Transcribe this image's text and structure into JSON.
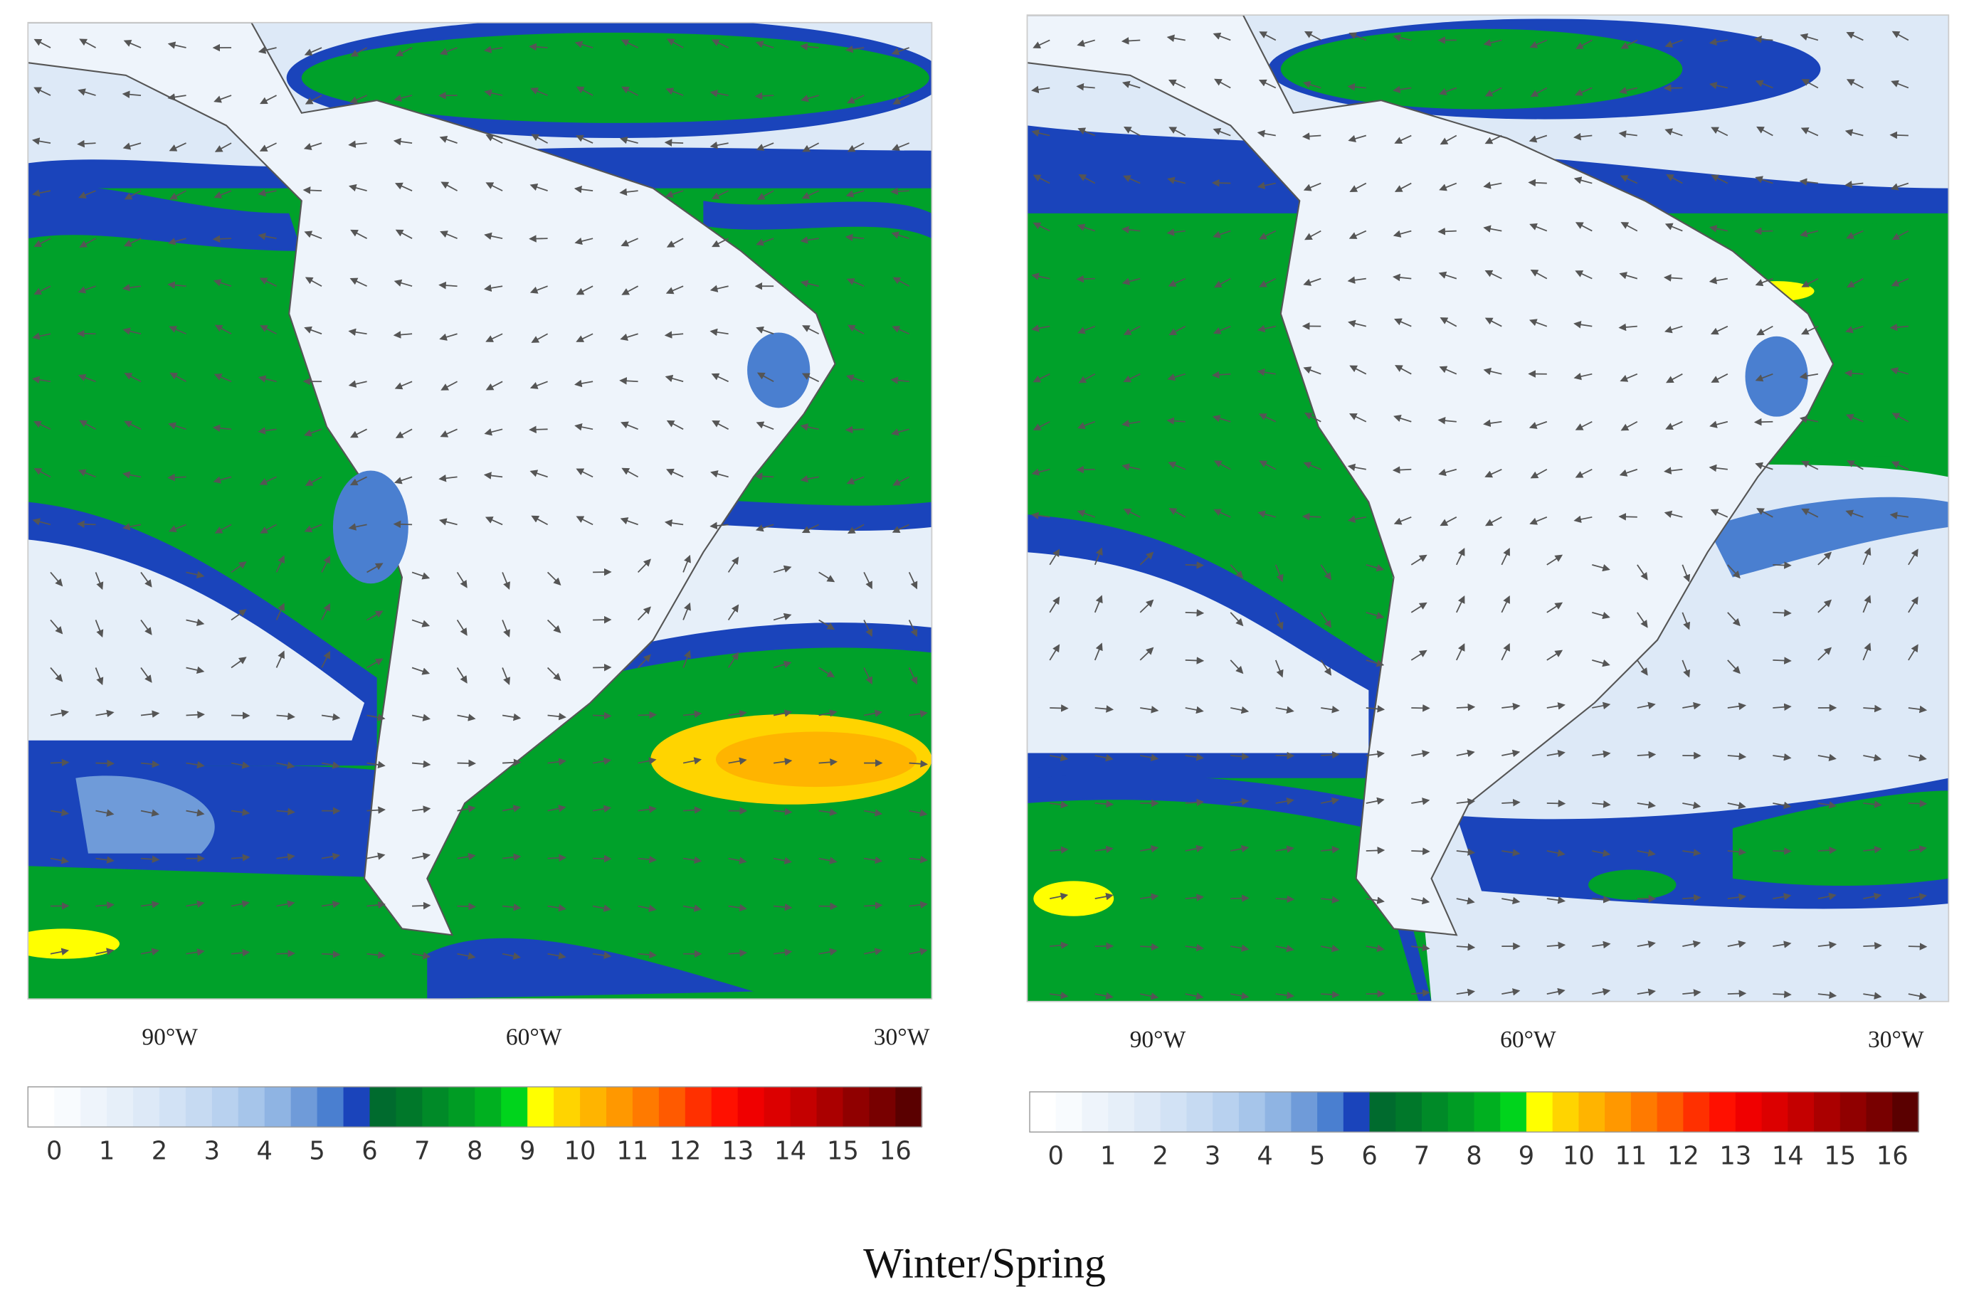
{
  "panels": [
    {
      "axis_labels": [
        "90°W",
        "60°W",
        "30°W"
      ],
      "colorbar": {
        "labels": [
          0,
          1,
          2,
          3,
          4,
          5,
          6,
          7,
          8,
          9,
          10,
          11,
          12,
          13,
          14,
          15,
          16
        ],
        "colors": [
          "#ffffff",
          "#f8fbfe",
          "#eef4fb",
          "#e6eff9",
          "#dde9f7",
          "#d2e2f5",
          "#c6daf2",
          "#b8d1ef",
          "#a6c5ea",
          "#8fb4e3",
          "#6f9bd9",
          "#4a7fd0",
          "#1a44bb",
          "#006b2e",
          "#00782a",
          "#008a28",
          "#009c24",
          "#00b020",
          "#00d41c",
          "#ffff00",
          "#ffd400",
          "#ffb400",
          "#ff9800",
          "#ff7a00",
          "#ff5a00",
          "#ff3000",
          "#ff1000",
          "#f00000",
          "#dc0000",
          "#c40000",
          "#aa0000",
          "#900000",
          "#780000",
          "#5a0000"
        ]
      }
    },
    {
      "axis_labels": [
        "90°W",
        "60°W",
        "30°W"
      ],
      "colorbar": {
        "labels": [
          0,
          1,
          2,
          3,
          4,
          5,
          6,
          7,
          8,
          9,
          10,
          11,
          12,
          13,
          14,
          15,
          16
        ],
        "colors": [
          "#ffffff",
          "#f8fbfe",
          "#eef4fb",
          "#e6eff9",
          "#dde9f7",
          "#d2e2f5",
          "#c6daf2",
          "#b8d1ef",
          "#a6c5ea",
          "#8fb4e3",
          "#6f9bd9",
          "#4a7fd0",
          "#1a44bb",
          "#006b2e",
          "#00782a",
          "#008a28",
          "#009c24",
          "#00b020",
          "#00d41c",
          "#ffff00",
          "#ffd400",
          "#ffb400",
          "#ff9800",
          "#ff7a00",
          "#ff5a00",
          "#ff3000",
          "#ff1000",
          "#f00000",
          "#dc0000",
          "#c40000",
          "#aa0000",
          "#900000",
          "#780000",
          "#5a0000"
        ]
      }
    }
  ],
  "caption": "Winter/Spring"
}
